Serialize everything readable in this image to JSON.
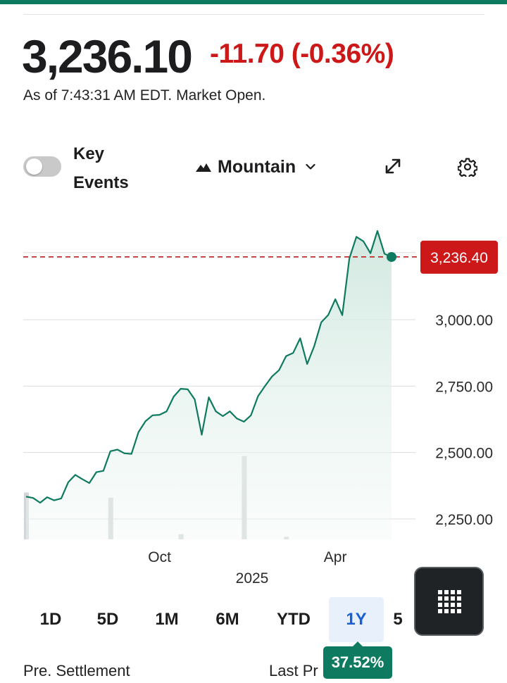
{
  "quote": {
    "price": "3,236.10",
    "change": "-11.70 (-0.36%)",
    "as_of": "As of 7:43:31 AM EDT. Market Open."
  },
  "controls": {
    "key_events_line1": "Key",
    "key_events_line2": "Events",
    "chart_type_label": "Mountain",
    "key_events_toggle_on": false
  },
  "chart_data": {
    "type": "area",
    "title": "",
    "xlabel": "2025",
    "ylabel": "",
    "x_tick_labels": [
      "Oct",
      "Apr"
    ],
    "y_tick_labels": [
      "3,000.00",
      "2,750.00",
      "2,500.00",
      "2,250.00"
    ],
    "y_ticks": [
      3000,
      2750,
      2500,
      2250
    ],
    "ylim": [
      2160,
      3300
    ],
    "last_value_label": "3,236.40",
    "last_value": 3236.4,
    "legend": "none",
    "grid": true,
    "colors": {
      "line": "#0e7a5f",
      "area": "#d9ede6",
      "last_price": "#cc1818",
      "volume": "#d3d6d8"
    },
    "series": [
      {
        "values": [
          2334,
          2329,
          2311,
          2332,
          2320,
          2327,
          2388,
          2416,
          2400,
          2385,
          2426,
          2431,
          2505,
          2511,
          2497,
          2495,
          2577,
          2618,
          2640,
          2642,
          2655,
          2710,
          2740,
          2738,
          2700,
          2567,
          2708,
          2655,
          2637,
          2655,
          2628,
          2616,
          2640,
          2712,
          2750,
          2786,
          2810,
          2863,
          2875,
          2930,
          2833,
          2900,
          2990,
          3018,
          3077,
          3017,
          3230,
          3312,
          3295,
          3250,
          3334,
          3248,
          3236
        ]
      }
    ],
    "volume": [
      180,
      0,
      0,
      0,
      0,
      0,
      0,
      0,
      0,
      0,
      0,
      0,
      160,
      0,
      0,
      0,
      0,
      0,
      0,
      0,
      0,
      0,
      20,
      0,
      0,
      0,
      0,
      0,
      0,
      0,
      0,
      320,
      0,
      0,
      0,
      0,
      0,
      10,
      0,
      0,
      0,
      0,
      0,
      0,
      0,
      0,
      0,
      0,
      0,
      0,
      0,
      0,
      0
    ],
    "x_tick_positions": {
      "Oct": 19,
      "Apr": 44
    }
  },
  "ranges": {
    "items": [
      "1D",
      "5D",
      "1M",
      "6M",
      "YTD",
      "1Y",
      "5"
    ],
    "active": "1Y",
    "return_badge": "37.52%"
  },
  "footer": {
    "pre_settlement": "Pre. Settlement",
    "last_price": "Last Pr"
  }
}
